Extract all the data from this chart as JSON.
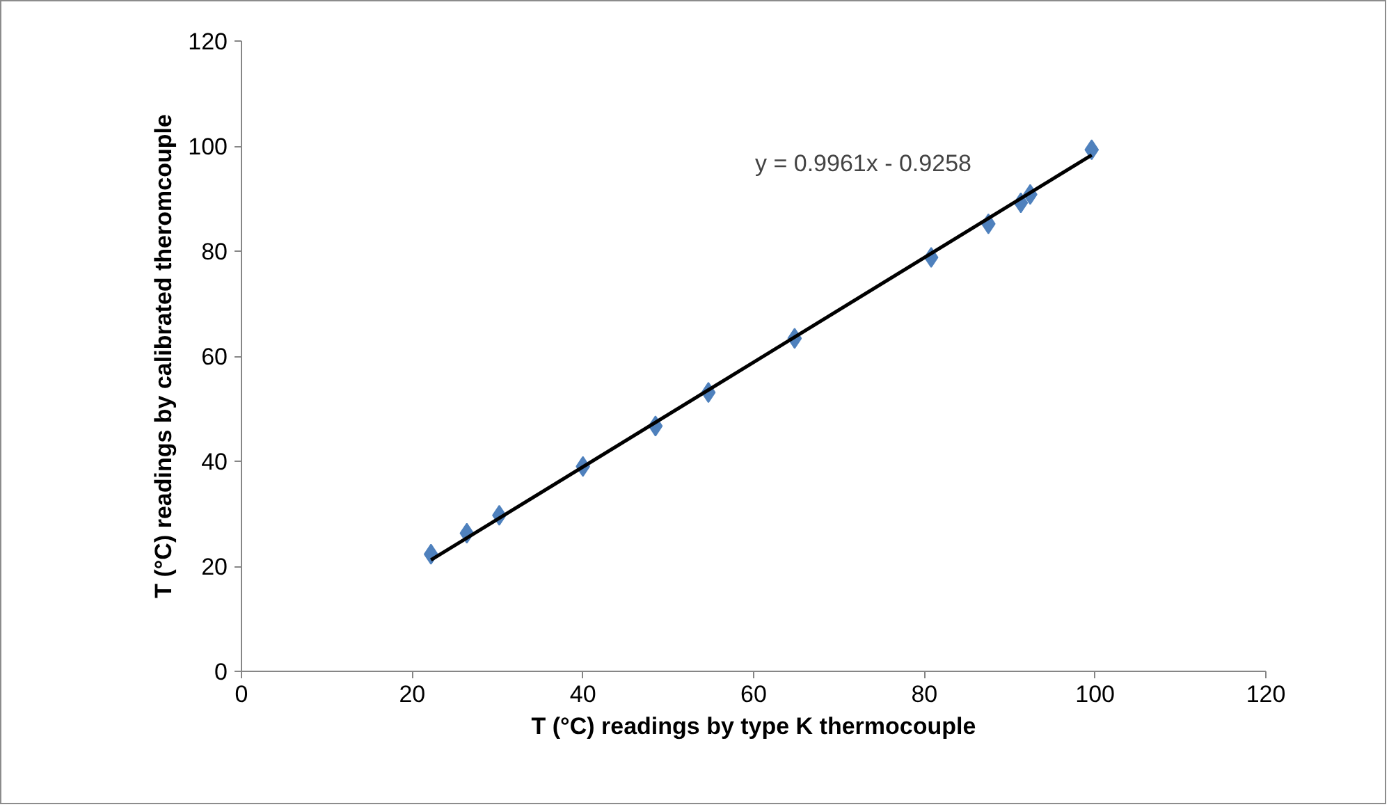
{
  "chart_data": {
    "type": "scatter",
    "xlabel": "T (°C) readings by type K thermocouple",
    "ylabel": "T (°C) readings by calibrated theromcouple",
    "xlim": [
      0,
      120
    ],
    "ylim": [
      0,
      120
    ],
    "xticks": [
      0,
      20,
      40,
      60,
      80,
      100,
      120
    ],
    "yticks": [
      0,
      20,
      40,
      60,
      80,
      100,
      120
    ],
    "grid": false,
    "series": [
      {
        "marker": "diamond",
        "color": "#4f81bd",
        "x": [
          22.2,
          26.4,
          30.2,
          40.0,
          48.5,
          54.7,
          64.8,
          80.8,
          87.5,
          91.3,
          92.4,
          99.6
        ],
        "values": [
          22.3,
          26.3,
          29.7,
          39.0,
          46.7,
          53.1,
          63.4,
          78.8,
          85.2,
          89.2,
          90.8,
          99.3
        ]
      },
      {
        "type": "line",
        "marker": "none",
        "color": "#000000",
        "line_style": "solid",
        "x": [
          22.2,
          99.6
        ],
        "values": [
          21.2,
          98.3
        ]
      }
    ],
    "annotations": [
      "y = 0.9961x - 0.9258"
    ]
  }
}
